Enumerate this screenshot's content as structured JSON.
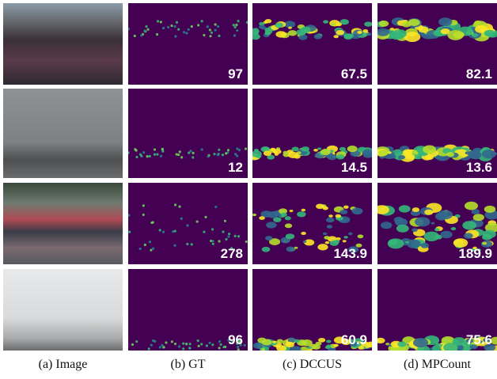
{
  "columns": [
    "(a) Image",
    "(b) GT",
    "(c) DCCUS",
    "(d) MPCount"
  ],
  "rows": [
    {
      "gt": 97,
      "dccus": 67.5,
      "mpcount": 82.1
    },
    {
      "gt": 12,
      "dccus": 14.5,
      "mpcount": 13.6
    },
    {
      "gt": 278,
      "dccus": 143.9,
      "mpcount": 189.9
    },
    {
      "gt": 96,
      "dccus": 60.9,
      "mpcount": 75.6
    }
  ]
}
